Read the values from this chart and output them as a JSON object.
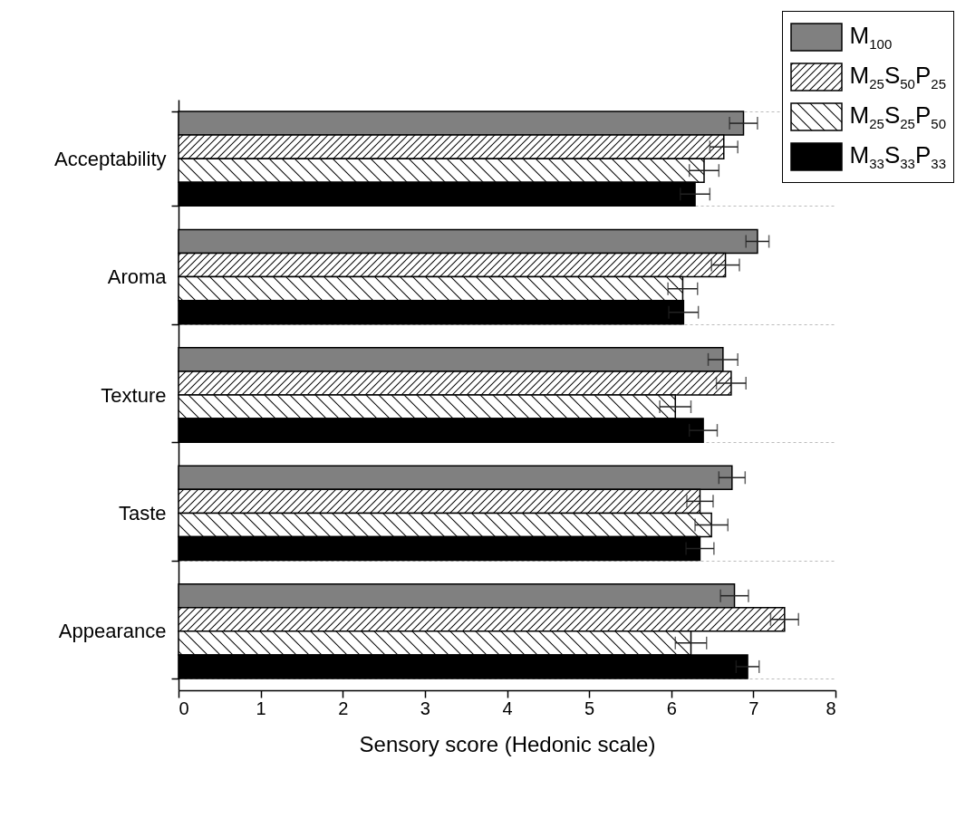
{
  "chart_data": {
    "type": "bar",
    "orientation": "horizontal",
    "xlabel": "Sensory score (Hedonic scale)",
    "categories": [
      "Acceptability",
      "Aroma",
      "Texture",
      "Taste",
      "Appearance"
    ],
    "series": [
      {
        "name": "M$_{100}$",
        "color": "#808080",
        "values": [
          6.88,
          7.05,
          6.63,
          6.74,
          6.77
        ],
        "errors": [
          0.17,
          0.14,
          0.18,
          0.16,
          0.17
        ]
      },
      {
        "name": "M$_{25}$S$_{50}$P$_{25}$",
        "color": "#ffffff",
        "values": [
          6.64,
          6.66,
          6.73,
          6.35,
          7.38
        ],
        "errors": [
          0.17,
          0.17,
          0.18,
          0.16,
          0.17
        ]
      },
      {
        "name": "M$_{25}$S$_{25}$P$_{50}$",
        "color": "#ffffff",
        "values": [
          6.4,
          6.14,
          6.05,
          6.49,
          6.24
        ],
        "errors": [
          0.18,
          0.18,
          0.19,
          0.2,
          0.19
        ]
      },
      {
        "name": "M$_{33}$S$_{33}$P$_{33}$",
        "color": "#000000",
        "values": [
          6.29,
          6.15,
          6.39,
          6.35,
          6.93
        ],
        "errors": [
          0.18,
          0.18,
          0.17,
          0.17,
          0.14
        ]
      }
    ],
    "xlim": [
      0,
      8
    ],
    "xticks": [
      {
        "value": 0,
        "label": "0"
      },
      {
        "value": 1,
        "label": "1"
      },
      {
        "value": 2,
        "label": "2"
      },
      {
        "value": 3,
        "label": "3"
      },
      {
        "value": 4,
        "label": "4"
      },
      {
        "value": 5,
        "label": "5"
      },
      {
        "value": 6,
        "label": "6"
      },
      {
        "value": 7,
        "label": "7"
      },
      {
        "value": 8,
        "label": "8"
      }
    ],
    "grid": "y",
    "legend": "top right"
  }
}
